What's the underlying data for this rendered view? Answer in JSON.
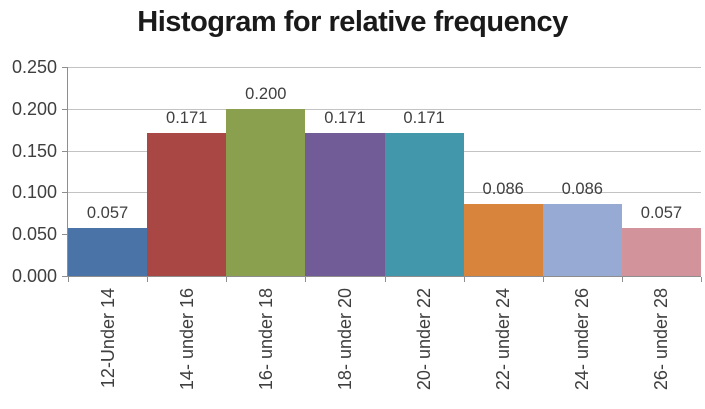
{
  "title": "Histogram for relative frequency",
  "chart_data": {
    "type": "bar",
    "title": "Histogram for relative frequency",
    "categories": [
      "12-Under 14",
      "14- under 16",
      "16- under 18",
      "18- under 20",
      "20- under 22",
      "22- under 24",
      "24- under 26",
      "26- under 28"
    ],
    "values": [
      0.057,
      0.171,
      0.2,
      0.171,
      0.171,
      0.086,
      0.086,
      0.057
    ],
    "data_labels": [
      "0.057",
      "0.171",
      "0.200",
      "0.171",
      "0.171",
      "0.086",
      "0.086",
      "0.057"
    ],
    "bar_colors": [
      "#4a73a8",
      "#a94745",
      "#8ba04f",
      "#715c97",
      "#4397ab",
      "#d9843d",
      "#97aad3",
      "#d3939a"
    ],
    "xlabel": "",
    "ylabel": "",
    "ylim": [
      0,
      0.25
    ],
    "yticks": [
      "0.000",
      "0.050",
      "0.100",
      "0.150",
      "0.200",
      "0.250"
    ],
    "grid": true,
    "legend_position": "none",
    "gridline_color": "#c3c3c3",
    "axis_color": "#8e8e8e",
    "label_color": "#3f3f3f",
    "bars_adjacent": true
  }
}
